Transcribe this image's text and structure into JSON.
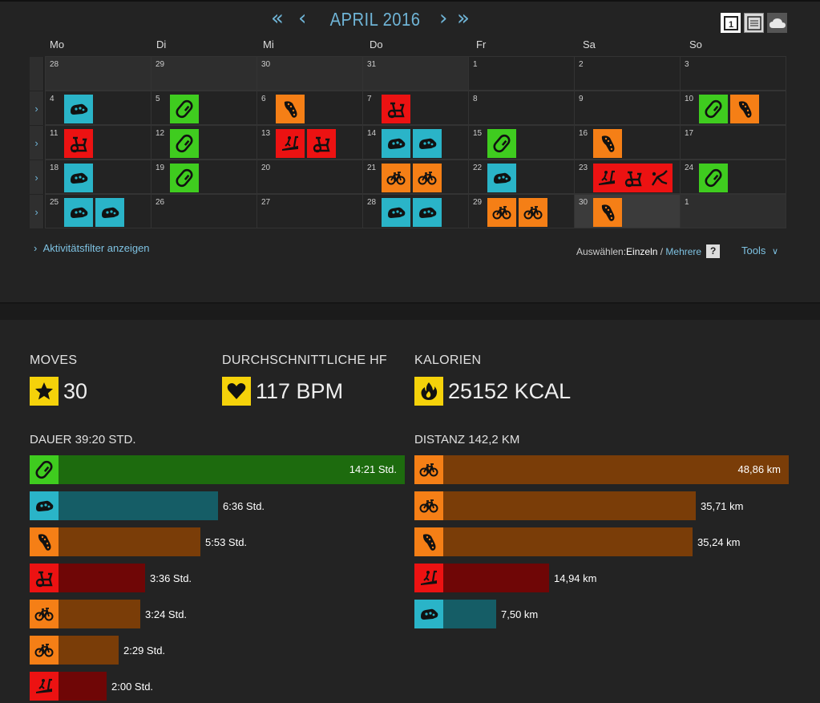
{
  "colors": {
    "climb": "#3fcc1f",
    "climb_dark": "#1d6b0e",
    "walk": "#2ab4c8",
    "walk_dark": "#155d66",
    "run": "#f57f16",
    "run_dark": "#7a3d08",
    "spin": "#ec1212",
    "spin_dark": "#6f0606",
    "cycle": "#f57f16",
    "cycle_dark": "#7a3d08",
    "stat_yellow": "#f5d20a",
    "link": "#7ec2e2"
  },
  "calendar": {
    "title": "APRIL 2016",
    "days": [
      "Mo",
      "Di",
      "Mi",
      "Do",
      "Fr",
      "Sa",
      "So"
    ],
    "weeks": [
      [
        {
          "d": "28",
          "o": true,
          "a": []
        },
        {
          "d": "29",
          "o": true,
          "a": []
        },
        {
          "d": "30",
          "o": true,
          "a": []
        },
        {
          "d": "31",
          "o": true,
          "a": []
        },
        {
          "d": "1",
          "a": []
        },
        {
          "d": "2",
          "a": []
        },
        {
          "d": "3",
          "a": []
        }
      ],
      [
        {
          "d": "4",
          "a": [
            "walk"
          ]
        },
        {
          "d": "5",
          "a": [
            "climb"
          ]
        },
        {
          "d": "6",
          "a": [
            "run"
          ]
        },
        {
          "d": "7",
          "a": [
            "spin"
          ]
        },
        {
          "d": "8",
          "a": []
        },
        {
          "d": "9",
          "a": []
        },
        {
          "d": "10",
          "a": [
            "climb",
            "run"
          ]
        }
      ],
      [
        {
          "d": "11",
          "a": [
            "spin"
          ]
        },
        {
          "d": "12",
          "a": [
            "climb"
          ]
        },
        {
          "d": "13",
          "a": [
            "treadmill",
            "spin"
          ]
        },
        {
          "d": "14",
          "a": [
            "walk",
            "walk"
          ]
        },
        {
          "d": "15",
          "a": [
            "climb"
          ]
        },
        {
          "d": "16",
          "a": [
            "run"
          ]
        },
        {
          "d": "17",
          "a": []
        }
      ],
      [
        {
          "d": "18",
          "a": [
            "walk"
          ]
        },
        {
          "d": "19",
          "a": [
            "climb"
          ]
        },
        {
          "d": "20",
          "a": []
        },
        {
          "d": "21",
          "a": [
            "cycle",
            "cycle"
          ]
        },
        {
          "d": "22",
          "a": [
            "walk"
          ]
        },
        {
          "d": "23",
          "a": [
            "treadmill",
            "spin",
            "stepper"
          ]
        },
        {
          "d": "24",
          "a": [
            "climb"
          ]
        }
      ],
      [
        {
          "d": "25",
          "a": [
            "walk",
            "walk"
          ]
        },
        {
          "d": "26",
          "a": []
        },
        {
          "d": "27",
          "a": []
        },
        {
          "d": "28",
          "a": [
            "walk",
            "walk"
          ]
        },
        {
          "d": "29",
          "a": [
            "cycle",
            "cycle"
          ]
        },
        {
          "d": "30",
          "s": true,
          "a": [
            "run"
          ]
        },
        {
          "d": "1",
          "o": true,
          "a": []
        }
      ]
    ]
  },
  "filter_link": "Aktivitätsfilter anzeigen",
  "select": {
    "label": "Auswählen:",
    "current": "Einzeln",
    "sep": " / ",
    "alt": "Mehrere",
    "help": "?"
  },
  "tools": "Tools",
  "stats": [
    {
      "label": "MOVES",
      "value": "30",
      "icon": "star"
    },
    {
      "label": "DURCHSCHNITTLICHE HF",
      "value": "117 BPM",
      "icon": "heart"
    },
    {
      "label": "KALORIEN",
      "value": "25152 KCAL",
      "icon": "flame"
    }
  ],
  "duration": {
    "title": "DAUER 39:20 STD.",
    "max_hours": 14.35,
    "bars": [
      {
        "type": "climb",
        "hours": 14.35,
        "label": "14:21 Std."
      },
      {
        "type": "walk",
        "hours": 6.6,
        "label": "6:36 Std."
      },
      {
        "type": "run",
        "hours": 5.88,
        "label": "5:53 Std."
      },
      {
        "type": "spin",
        "hours": 3.6,
        "label": "3:36 Std."
      },
      {
        "type": "cycle",
        "hours": 3.4,
        "label": "3:24 Std."
      },
      {
        "type": "cycle",
        "hours": 2.48,
        "label": "2:29 Std."
      },
      {
        "type": "treadmill",
        "hours": 2.0,
        "label": "2:00 Std."
      }
    ]
  },
  "distance": {
    "title": "DISTANZ 142,2 KM",
    "max_km": 48.86,
    "bars": [
      {
        "type": "cycle",
        "km": 48.86,
        "label": "48,86 km"
      },
      {
        "type": "cycle",
        "km": 35.71,
        "label": "35,71 km"
      },
      {
        "type": "run",
        "km": 35.24,
        "label": "35,24 km"
      },
      {
        "type": "treadmill",
        "km": 14.94,
        "label": "14,94 km"
      },
      {
        "type": "walk",
        "km": 7.5,
        "label": "7,50 km"
      }
    ]
  }
}
